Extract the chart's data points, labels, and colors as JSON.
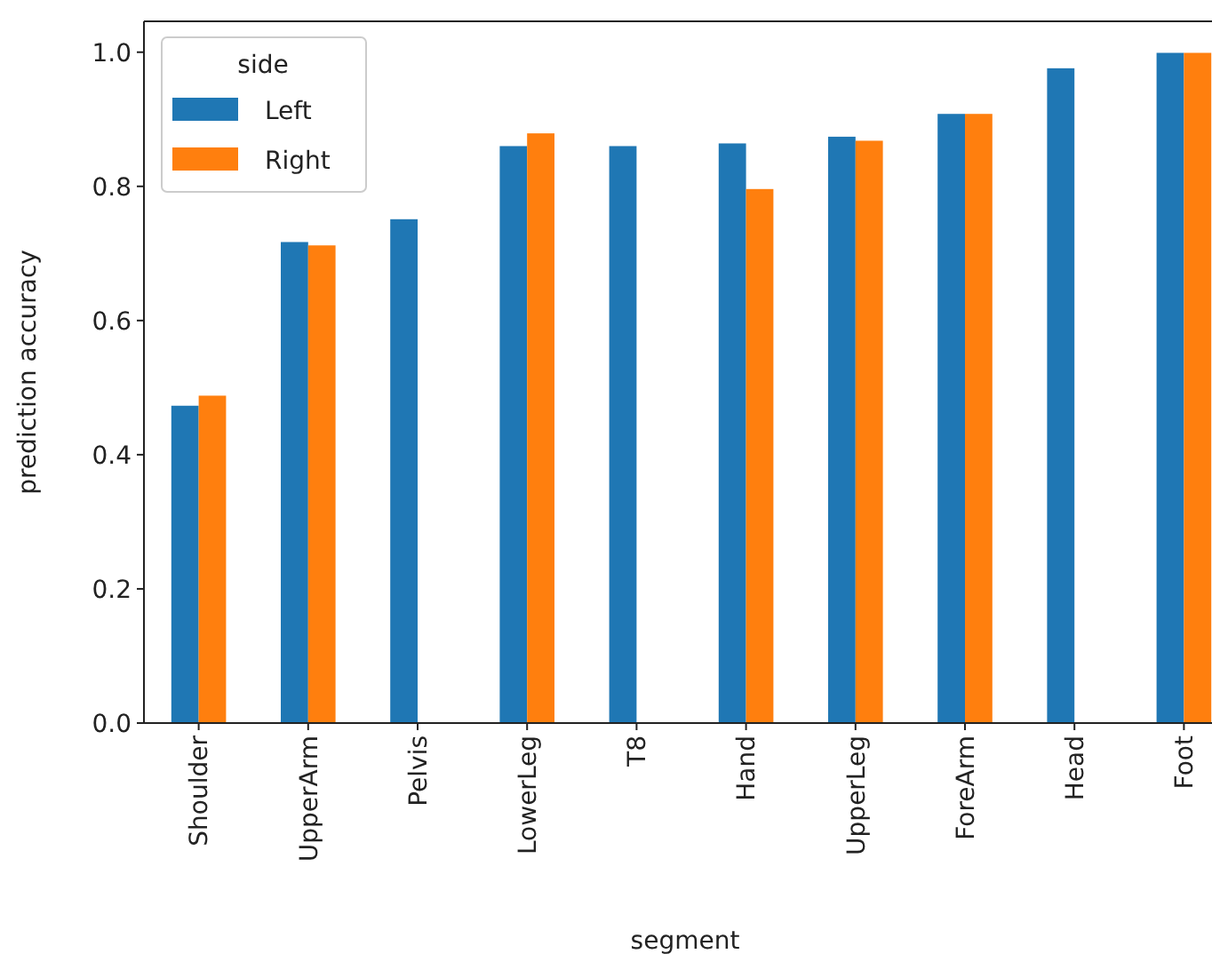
{
  "chart_data": {
    "type": "bar",
    "xlabel": "segment",
    "ylabel": "prediction accuracy",
    "legend_title": "side",
    "legend": "top left",
    "categories": [
      "Shoulder",
      "UpperArm",
      "Pelvis",
      "LowerLeg",
      "T8",
      "Hand",
      "UpperLeg",
      "ForeArm",
      "Head",
      "Foot"
    ],
    "series": [
      {
        "name": "Left",
        "color": "#1f77b4",
        "values": [
          0.473,
          0.717,
          0.751,
          0.86,
          0.86,
          0.864,
          0.874,
          0.908,
          0.976,
          0.999
        ]
      },
      {
        "name": "Right",
        "color": "#ff7f0e",
        "values": [
          0.488,
          0.712,
          null,
          0.879,
          null,
          0.796,
          0.868,
          0.908,
          null,
          0.999
        ]
      }
    ],
    "ylim": [
      0,
      1.046
    ],
    "yticks": [
      {
        "value": 0,
        "label": "0.0"
      },
      {
        "value": 0.2,
        "label": "0.2"
      },
      {
        "value": 0.4,
        "label": "0.4"
      },
      {
        "value": 0.6,
        "label": "0.6"
      },
      {
        "value": 0.8,
        "label": "0.8"
      },
      {
        "value": 1,
        "label": "1.0"
      }
    ],
    "grid": false
  }
}
